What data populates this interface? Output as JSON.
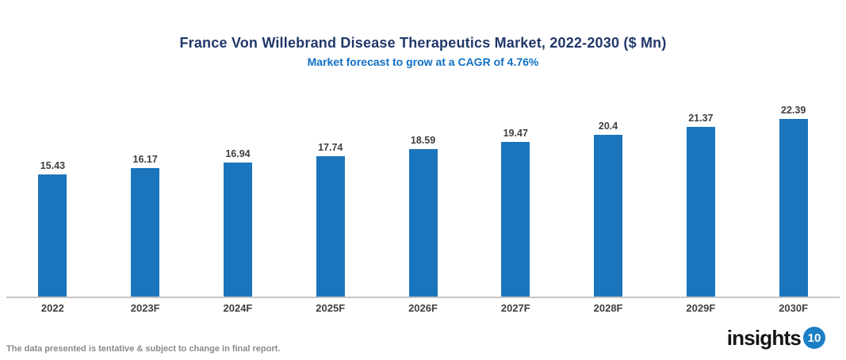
{
  "chart_data": {
    "type": "bar",
    "title": "France Von Willebrand Disease Therapeutics Market, 2022-2030 ($ Mn)",
    "subtitle": "Market forecast to grow at a CAGR of 4.76%",
    "categories": [
      "2022",
      "2023F",
      "2024F",
      "2025F",
      "2026F",
      "2027F",
      "2028F",
      "2029F",
      "2030F"
    ],
    "values": [
      15.43,
      16.17,
      16.94,
      17.74,
      18.59,
      19.47,
      20.4,
      21.37,
      22.39
    ],
    "value_labels": [
      "15.43",
      "16.17",
      "16.94",
      "17.74",
      "18.59",
      "19.47",
      "20.4",
      "21.37",
      "22.39"
    ],
    "xlabel": "",
    "ylabel": "",
    "ylim": [
      0,
      25
    ],
    "grid": false,
    "legend": "none",
    "colors": {
      "bar": "#1b75bc",
      "title": "#22386b",
      "subtitle": "#0f6fc5",
      "label": "#3f3f3f",
      "axis": "#c6c6c6",
      "note": "#8a8a8a",
      "badge": "#1b7fc4"
    }
  },
  "footer": {
    "note": "The data presented is tentative & subject to change in final report.",
    "logo": {
      "text": "insights",
      "badge": "10"
    }
  }
}
